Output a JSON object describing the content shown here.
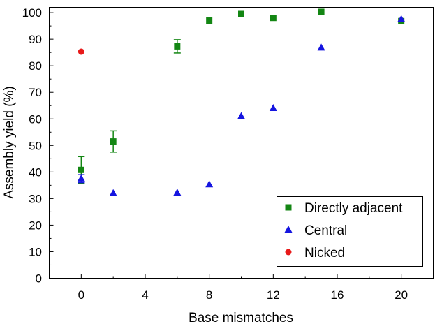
{
  "chart_data": {
    "type": "scatter",
    "title": "",
    "xlabel": "Base mismatches",
    "ylabel": "Assembly yield (%)",
    "xlim": [
      -2,
      22
    ],
    "ylim": [
      0,
      102
    ],
    "x_ticks": [
      0,
      4,
      8,
      12,
      16,
      20
    ],
    "y_ticks": [
      0,
      10,
      20,
      30,
      40,
      50,
      60,
      70,
      80,
      90,
      100
    ],
    "grid": false,
    "legend_position": "bottom-right",
    "series": [
      {
        "name": "Directly adjacent",
        "marker": "square",
        "color": "#138613",
        "x": [
          0,
          2,
          6,
          8,
          10,
          12,
          15,
          20
        ],
        "y": [
          40.8,
          51.5,
          87.3,
          97.0,
          99.5,
          98.0,
          100.3,
          96.8
        ],
        "err": [
          5.0,
          4.0,
          2.5,
          0,
          0,
          0,
          0,
          0
        ]
      },
      {
        "name": "Central",
        "marker": "triangle",
        "color": "#1515e0",
        "x": [
          0,
          2,
          6,
          8,
          10,
          12,
          15,
          20
        ],
        "y": [
          37.5,
          32.0,
          32.2,
          35.3,
          61.0,
          64.0,
          86.8,
          97.5
        ],
        "err": [
          1.5,
          0,
          0,
          0,
          0,
          0,
          0,
          0
        ]
      },
      {
        "name": "Nicked",
        "marker": "circle",
        "color": "#e81a1a",
        "x": [
          0
        ],
        "y": [
          85.3
        ],
        "err": [
          0
        ]
      }
    ]
  }
}
